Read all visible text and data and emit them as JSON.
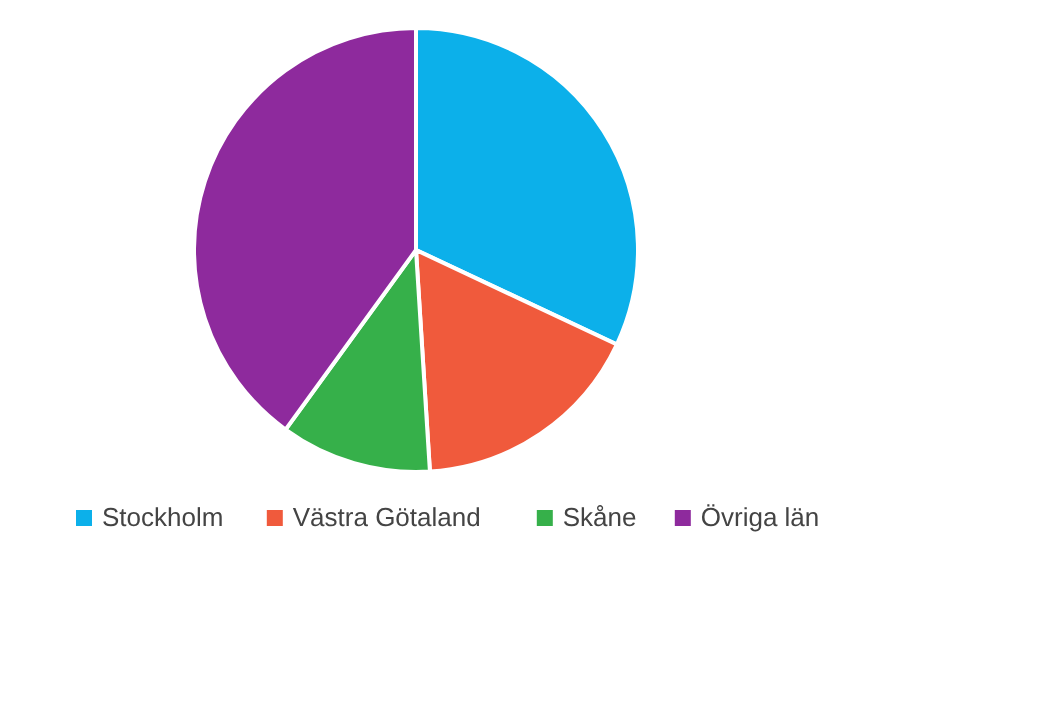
{
  "chart_data": {
    "type": "pie",
    "categories": [
      "Stockholm",
      "Västra Götaland",
      "Skåne",
      "Övriga län"
    ],
    "values": [
      32,
      17,
      11,
      40
    ],
    "colors": [
      "#0cb0ea",
      "#f05a3c",
      "#36b04a",
      "#8e2a9d"
    ],
    "legend": "bottom"
  }
}
